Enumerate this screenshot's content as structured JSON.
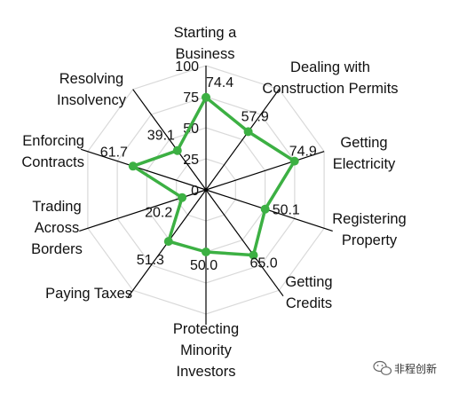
{
  "chart_data": {
    "type": "radar",
    "categories": [
      "Starting a Business",
      "Dealing with Construction Permits",
      "Getting Electricity",
      "Registering Property",
      "Getting Credits",
      "Protecting Minority Investors",
      "Paying Taxes",
      "Trading Across Borders",
      "Enforcing Contracts",
      "Resolving Insolvency"
    ],
    "values": [
      74.4,
      57.9,
      74.9,
      50.1,
      65.0,
      50.0,
      51.3,
      20.2,
      61.7,
      39.1
    ],
    "value_labels": [
      "74.4",
      "57.9",
      "74.9",
      "50.1",
      "65.0",
      "50.0",
      "51.3",
      "20.2",
      "61.7",
      "39.1"
    ],
    "rlim": [
      0,
      100
    ],
    "ticks": [
      0,
      25,
      50,
      75,
      100
    ],
    "series_color": "#3cb043",
    "grid": true
  },
  "watermark": {
    "text": "非程创新",
    "icon": "wechat-logo-icon"
  }
}
